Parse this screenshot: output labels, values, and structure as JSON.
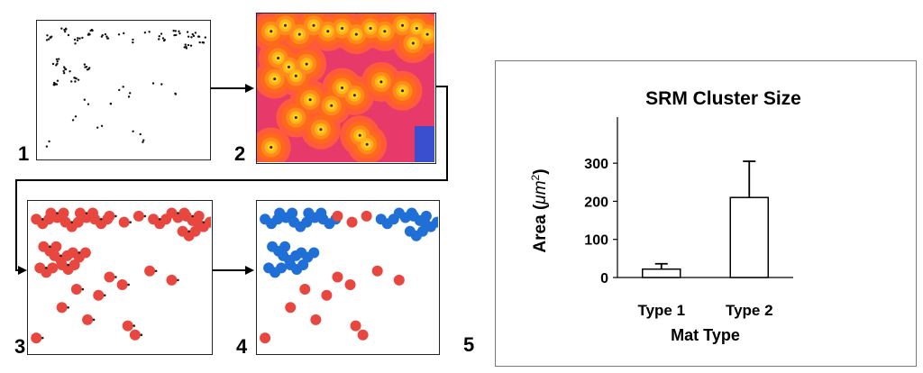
{
  "panels": [
    {
      "label": "1"
    },
    {
      "label": "2"
    },
    {
      "label": "3"
    },
    {
      "label": "4"
    }
  ],
  "chart_label": "5",
  "chart_data": {
    "type": "bar",
    "title": "SRM Cluster Size",
    "xlabel": "Mat Type",
    "ylabel_main": "Area (",
    "ylabel_unit": "μm",
    "ylabel_sup": "2",
    "ylabel_end": ")",
    "categories": [
      "Type 1",
      "Type 2"
    ],
    "values": [
      22,
      210
    ],
    "errors": [
      14,
      95
    ],
    "ylim": [
      0,
      350
    ],
    "yticks": [
      "0",
      "100",
      "200",
      "300"
    ],
    "bar_color": "#ffffff",
    "edge_color": "#000000"
  },
  "colors": {
    "heat_bg": "#e83a6a",
    "heat_orange": "#ff6a1a",
    "heat_yellow": "#ffd21a",
    "cluster_red": "#e8473f",
    "cluster_blue": "#1f6fd6"
  }
}
